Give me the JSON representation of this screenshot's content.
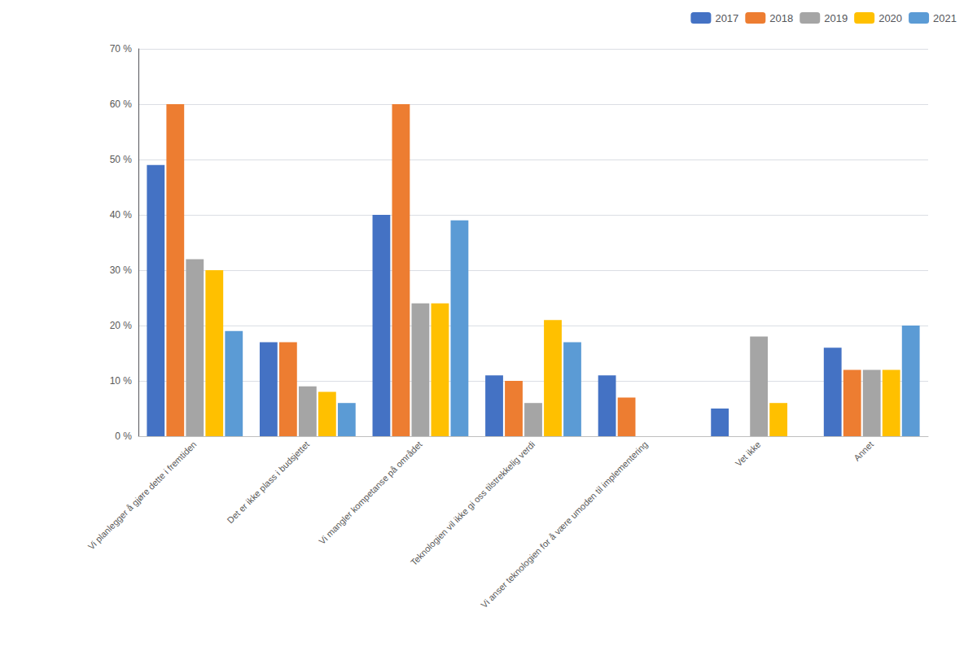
{
  "chart_data": {
    "type": "bar",
    "categories": [
      "Vi planlegger å gjøre dette i fremtiden",
      "Det er ikke plass i budsjettet",
      "Vi mangler kompetanse på området",
      "Teknologien vil ikke gi oss tilstrekkelig verdi",
      "Vi anser teknologien for å være umoden til implementering",
      "Vet ikke",
      "Annet"
    ],
    "series": [
      {
        "name": "2017",
        "color": "#4472C4",
        "values": [
          49,
          17,
          40,
          11,
          11,
          5,
          16
        ]
      },
      {
        "name": "2018",
        "color": "#ED7D31",
        "values": [
          60,
          17,
          60,
          10,
          7,
          0,
          12
        ]
      },
      {
        "name": "2019",
        "color": "#A5A5A5",
        "values": [
          32,
          9,
          24,
          6,
          0,
          18,
          12
        ]
      },
      {
        "name": "2020",
        "color": "#FFC000",
        "values": [
          30,
          8,
          24,
          21,
          0,
          6,
          12
        ]
      },
      {
        "name": "2021",
        "color": "#5B9BD5",
        "values": [
          19,
          6,
          39,
          17,
          0,
          0,
          20
        ]
      }
    ],
    "ylim": [
      0,
      70
    ],
    "yticks": [
      {
        "value": 0,
        "label": "0 %"
      },
      {
        "value": 10,
        "label": "10 %"
      },
      {
        "value": 20,
        "label": "20 %"
      },
      {
        "value": 30,
        "label": "30 %"
      },
      {
        "value": 40,
        "label": "40 %"
      },
      {
        "value": 50,
        "label": "50 %"
      },
      {
        "value": 60,
        "label": "60 %"
      },
      {
        "value": 70,
        "label": "70 %"
      }
    ],
    "grid": true,
    "legend": "upper right"
  }
}
